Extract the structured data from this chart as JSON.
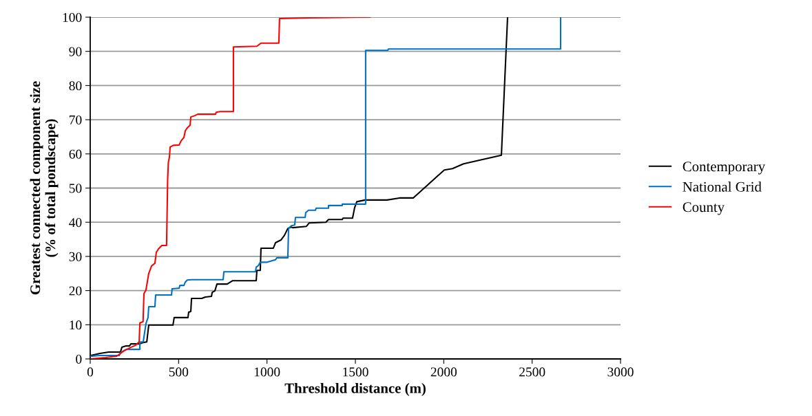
{
  "chart_data": {
    "type": "line",
    "xlabel": "Threshold distance (m)",
    "ylabel": "Greatest connected component size\n(% of total pondscape)",
    "xlim": [
      0,
      3000
    ],
    "xticks": [
      0,
      500,
      1000,
      1500,
      2000,
      2500,
      3000
    ],
    "ylim": [
      0,
      100
    ],
    "yticks": [
      0,
      10,
      20,
      30,
      40,
      50,
      60,
      70,
      80,
      90,
      100
    ],
    "grid": "y",
    "legend": "right",
    "marker": "none",
    "line_style": "solid",
    "series": [
      {
        "name": "Contemporary",
        "color": "#000000",
        "x": [
          3,
          55,
          105,
          171,
          179,
          203,
          222,
          230,
          281,
          300,
          320,
          331,
          468,
          475,
          553,
          557,
          569,
          573,
          631,
          651,
          686,
          690,
          705,
          717,
          775,
          787,
          806,
          939,
          943,
          962,
          966,
          1036,
          1048,
          1079,
          1099,
          1118,
          1138,
          1145,
          1223,
          1239,
          1333,
          1348,
          1426,
          1430,
          1484,
          1496,
          1508,
          1555,
          1679,
          1749,
          1827,
          2003,
          2049,
          2112,
          2326,
          2361
        ],
        "values": [
          1,
          1.6,
          2,
          2,
          3.4,
          3.8,
          3.8,
          4.4,
          4.4,
          4.8,
          5,
          9.9,
          9.9,
          12.1,
          12.1,
          13.7,
          13.9,
          17.7,
          17.7,
          18.1,
          18.3,
          19.5,
          19.9,
          21.9,
          21.9,
          22.3,
          22.9,
          22.9,
          25.9,
          25.9,
          32.4,
          32.4,
          34,
          34.8,
          36.2,
          38.2,
          38.6,
          38.4,
          38.8,
          39.8,
          40,
          40.8,
          40.8,
          41.2,
          41.2,
          44.3,
          46,
          46.5,
          46.5,
          47.1,
          47.1,
          55.3,
          55.7,
          57.1,
          59.6,
          100
        ]
      },
      {
        "name": "National Grid",
        "color": "#0070c0",
        "x": [
          3,
          55,
          164,
          171,
          203,
          281,
          281,
          300,
          308,
          316,
          327,
          331,
          366,
          370,
          460,
          463,
          503,
          507,
          530,
          538,
          549,
          573,
          752,
          756,
          935,
          939,
          951,
          962,
          1001,
          1048,
          1056,
          1118,
          1122,
          1138,
          1157,
          1161,
          1216,
          1219,
          1235,
          1274,
          1278,
          1348,
          1348,
          1426,
          1426,
          1558,
          1558,
          1683,
          1687,
          2661,
          2661
        ],
        "values": [
          0.8,
          1,
          1,
          1.8,
          2.8,
          2.8,
          4.9,
          5,
          7.8,
          10.5,
          12.1,
          15.3,
          15.3,
          18.7,
          18.7,
          20.5,
          20.7,
          21.5,
          21.5,
          22.5,
          23.1,
          23.2,
          23.2,
          25.5,
          25.5,
          26.9,
          27.3,
          28.3,
          28.3,
          29,
          29.6,
          29.6,
          38.2,
          39,
          39.2,
          41.4,
          41.4,
          42.8,
          43.5,
          43.5,
          44.1,
          44.1,
          44.9,
          44.9,
          45.3,
          45.3,
          90.3,
          90.3,
          90.7,
          90.7,
          100
        ]
      },
      {
        "name": "County",
        "color": "#ff0000",
        "x": [
          0,
          86,
          150,
          191,
          230,
          257,
          277,
          281,
          299,
          304,
          315,
          323,
          331,
          347,
          366,
          374,
          386,
          405,
          432,
          438,
          442,
          448,
          452,
          470,
          503,
          514,
          530,
          538,
          549,
          565,
          569,
          592,
          608,
          709,
          713,
          736,
          810,
          810,
          943,
          966,
          1067,
          1071,
          1231,
          1582
        ],
        "values": [
          0,
          0.4,
          0.8,
          2.4,
          3.4,
          4,
          5,
          10.5,
          10.9,
          19.1,
          20.1,
          22.5,
          25,
          27.2,
          28,
          31.2,
          32.2,
          33.2,
          33.2,
          52.5,
          57.5,
          59,
          62,
          62.5,
          62.6,
          63.8,
          64.8,
          66.8,
          67.6,
          68.4,
          70.8,
          71.2,
          71.6,
          71.6,
          72.2,
          72.4,
          72.4,
          91.3,
          91.5,
          92.4,
          92.4,
          99.6,
          99.8,
          100
        ]
      }
    ]
  }
}
